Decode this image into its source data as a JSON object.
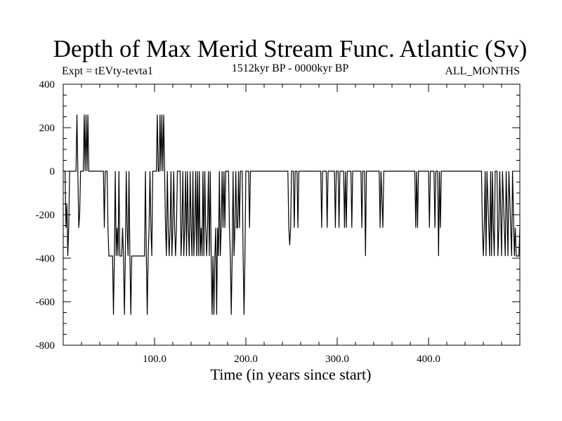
{
  "chart_data": {
    "type": "line",
    "title": "Depth of Max Merid Stream Func. Atlantic (Sv)",
    "subtitle_left": "Expt = tEVty-tevta1",
    "subtitle_center": "1512kyr BP - 0000kyr BP",
    "subtitle_right": "ALL_MONTHS",
    "xlabel": "Time (in years since start)",
    "ylabel": "",
    "xlim": [
      0,
      500
    ],
    "ylim": [
      -800,
      400
    ],
    "x_ticks": [
      100,
      200,
      300,
      400
    ],
    "x_tick_labels": [
      "100.0",
      "200.0",
      "300.0",
      "400.0"
    ],
    "y_ticks": [
      400,
      200,
      0,
      -200,
      -400,
      -600,
      -800
    ],
    "y_tick_labels": [
      "400",
      "200",
      "0",
      "-200",
      "-400",
      "-600",
      "-800"
    ],
    "grid": false,
    "series": [
      {
        "name": "Depth of Max Merid Stream Func.",
        "color": "#000000",
        "segments": [
          [
            0,
            0
          ],
          [
            2,
            0
          ],
          [
            3,
            -260
          ],
          [
            4,
            -150
          ],
          [
            5,
            -390
          ],
          [
            6,
            -260
          ],
          [
            7,
            0
          ],
          [
            14,
            0
          ],
          [
            15,
            260
          ],
          [
            16,
            0
          ],
          [
            17,
            -260
          ],
          [
            18,
            -200
          ],
          [
            19,
            0
          ],
          [
            22,
            0
          ],
          [
            23,
            260
          ],
          [
            24,
            0
          ],
          [
            25,
            260
          ],
          [
            26,
            0
          ],
          [
            27,
            260
          ],
          [
            28,
            0
          ],
          [
            44,
            0
          ],
          [
            45,
            -260
          ],
          [
            46,
            0
          ],
          [
            48,
            0
          ],
          [
            49,
            -260
          ],
          [
            50,
            -390
          ],
          [
            51,
            -390
          ],
          [
            52,
            -390
          ],
          [
            53,
            -390
          ],
          [
            54,
            -390
          ],
          [
            55,
            -660
          ],
          [
            56,
            -390
          ],
          [
            57,
            0
          ],
          [
            58,
            -390
          ],
          [
            59,
            -260
          ],
          [
            60,
            -390
          ],
          [
            61,
            0
          ],
          [
            62,
            -390
          ],
          [
            63,
            -390
          ],
          [
            64,
            -390
          ],
          [
            65,
            -260
          ],
          [
            66,
            -390
          ],
          [
            67,
            -660
          ],
          [
            68,
            -390
          ],
          [
            69,
            0
          ],
          [
            70,
            -260
          ],
          [
            71,
            -390
          ],
          [
            72,
            0
          ],
          [
            73,
            -390
          ],
          [
            74,
            -660
          ],
          [
            75,
            -390
          ],
          [
            76,
            -390
          ],
          [
            77,
            -390
          ],
          [
            78,
            -390
          ],
          [
            79,
            -390
          ],
          [
            80,
            -390
          ],
          [
            81,
            -390
          ],
          [
            82,
            -390
          ],
          [
            83,
            -390
          ],
          [
            84,
            -390
          ],
          [
            85,
            -390
          ],
          [
            86,
            -390
          ],
          [
            87,
            -390
          ],
          [
            88,
            -390
          ],
          [
            89,
            -390
          ],
          [
            90,
            0
          ],
          [
            91,
            -390
          ],
          [
            92,
            -660
          ],
          [
            93,
            -390
          ],
          [
            94,
            -260
          ],
          [
            95,
            0
          ],
          [
            96,
            -260
          ],
          [
            97,
            -390
          ],
          [
            98,
            0
          ],
          [
            99,
            0
          ],
          [
            102,
            0
          ],
          [
            103,
            260
          ],
          [
            104,
            0
          ],
          [
            105,
            0
          ],
          [
            106,
            260
          ],
          [
            107,
            0
          ],
          [
            108,
            260
          ],
          [
            109,
            0
          ],
          [
            110,
            260
          ],
          [
            111,
            0
          ],
          [
            112,
            -260
          ],
          [
            113,
            -390
          ],
          [
            114,
            0
          ],
          [
            115,
            -260
          ],
          [
            116,
            -390
          ],
          [
            117,
            -260
          ],
          [
            118,
            0
          ],
          [
            119,
            -390
          ],
          [
            120,
            -260
          ],
          [
            121,
            0
          ],
          [
            122,
            -260
          ],
          [
            123,
            -390
          ],
          [
            124,
            -260
          ],
          [
            125,
            0
          ],
          [
            128,
            0
          ],
          [
            129,
            -390
          ],
          [
            130,
            -260
          ],
          [
            131,
            0
          ],
          [
            132,
            -390
          ],
          [
            133,
            -260
          ],
          [
            134,
            0
          ],
          [
            135,
            -390
          ],
          [
            136,
            0
          ],
          [
            137,
            -260
          ],
          [
            138,
            -390
          ],
          [
            139,
            0
          ],
          [
            140,
            -260
          ],
          [
            141,
            -390
          ],
          [
            142,
            0
          ],
          [
            143,
            -390
          ],
          [
            144,
            -260
          ],
          [
            145,
            0
          ],
          [
            146,
            -390
          ],
          [
            147,
            0
          ],
          [
            148,
            -390
          ],
          [
            149,
            0
          ],
          [
            150,
            -390
          ],
          [
            151,
            -260
          ],
          [
            152,
            -390
          ],
          [
            153,
            0
          ],
          [
            154,
            -390
          ],
          [
            155,
            0
          ],
          [
            156,
            -260
          ],
          [
            157,
            -390
          ],
          [
            158,
            -260
          ],
          [
            159,
            0
          ],
          [
            160,
            -390
          ],
          [
            161,
            0
          ],
          [
            162,
            -390
          ],
          [
            163,
            -660
          ],
          [
            164,
            -390
          ],
          [
            165,
            -660
          ],
          [
            166,
            -390
          ],
          [
            167,
            -260
          ],
          [
            168,
            -660
          ],
          [
            169,
            -260
          ],
          [
            170,
            -390
          ],
          [
            171,
            0
          ],
          [
            172,
            -390
          ],
          [
            173,
            -260
          ],
          [
            174,
            0
          ],
          [
            175,
            -260
          ],
          [
            176,
            0
          ],
          [
            177,
            -260
          ],
          [
            178,
            0
          ],
          [
            181,
            0
          ],
          [
            182,
            -260
          ],
          [
            183,
            -390
          ],
          [
            184,
            -660
          ],
          [
            185,
            -390
          ],
          [
            186,
            0
          ],
          [
            187,
            -390
          ],
          [
            188,
            -260
          ],
          [
            189,
            0
          ],
          [
            190,
            -260
          ],
          [
            191,
            -260
          ],
          [
            192,
            0
          ],
          [
            193,
            -260
          ],
          [
            194,
            0
          ],
          [
            196,
            0
          ],
          [
            197,
            -390
          ],
          [
            198,
            -660
          ],
          [
            199,
            -390
          ],
          [
            200,
            0
          ],
          [
            203,
            0
          ],
          [
            204,
            -260
          ],
          [
            205,
            0
          ],
          [
            246,
            0
          ],
          [
            247,
            -260
          ],
          [
            248,
            -340
          ],
          [
            249,
            -260
          ],
          [
            250,
            0
          ],
          [
            252,
            0
          ],
          [
            253,
            -260
          ],
          [
            254,
            0
          ],
          [
            256,
            0
          ],
          [
            257,
            -260
          ],
          [
            258,
            0
          ],
          [
            282,
            0
          ],
          [
            283,
            -260
          ],
          [
            284,
            0
          ],
          [
            288,
            0
          ],
          [
            289,
            -260
          ],
          [
            290,
            0
          ],
          [
            297,
            0
          ],
          [
            298,
            -260
          ],
          [
            299,
            0
          ],
          [
            301,
            0
          ],
          [
            302,
            -260
          ],
          [
            303,
            0
          ],
          [
            307,
            0
          ],
          [
            308,
            -260
          ],
          [
            309,
            0
          ],
          [
            310,
            -260
          ],
          [
            311,
            0
          ],
          [
            315,
            0
          ],
          [
            316,
            -260
          ],
          [
            317,
            0
          ],
          [
            326,
            0
          ],
          [
            327,
            -260
          ],
          [
            328,
            0
          ],
          [
            330,
            0
          ],
          [
            331,
            -390
          ],
          [
            332,
            0
          ],
          [
            346,
            0
          ],
          [
            347,
            -260
          ],
          [
            348,
            0
          ],
          [
            350,
            -260
          ],
          [
            351,
            0
          ],
          [
            385,
            0
          ],
          [
            386,
            -260
          ],
          [
            387,
            0
          ],
          [
            388,
            -260
          ],
          [
            389,
            0
          ],
          [
            400,
            0
          ],
          [
            401,
            -260
          ],
          [
            402,
            0
          ],
          [
            406,
            0
          ],
          [
            407,
            -260
          ],
          [
            408,
            0
          ],
          [
            410,
            0
          ],
          [
            411,
            -390
          ],
          [
            412,
            0
          ],
          [
            413,
            -260
          ],
          [
            414,
            0
          ],
          [
            458,
            0
          ],
          [
            459,
            -260
          ],
          [
            460,
            -390
          ],
          [
            461,
            -260
          ],
          [
            462,
            0
          ],
          [
            463,
            -390
          ],
          [
            464,
            0
          ],
          [
            466,
            -260
          ],
          [
            467,
            -390
          ],
          [
            468,
            0
          ],
          [
            469,
            -390
          ],
          [
            470,
            0
          ],
          [
            471,
            -260
          ],
          [
            472,
            -390
          ],
          [
            473,
            0
          ],
          [
            475,
            0
          ],
          [
            476,
            -390
          ],
          [
            477,
            -260
          ],
          [
            478,
            0
          ],
          [
            480,
            -390
          ],
          [
            481,
            0
          ],
          [
            483,
            -260
          ],
          [
            484,
            -390
          ],
          [
            485,
            0
          ],
          [
            487,
            -390
          ],
          [
            488,
            0
          ],
          [
            490,
            -260
          ],
          [
            491,
            -390
          ],
          [
            492,
            0
          ],
          [
            494,
            -390
          ],
          [
            495,
            -260
          ],
          [
            496,
            -390
          ],
          [
            497,
            -390
          ],
          [
            498,
            -390
          ],
          [
            499,
            -390
          ],
          [
            500,
            -260
          ]
        ]
      }
    ]
  }
}
